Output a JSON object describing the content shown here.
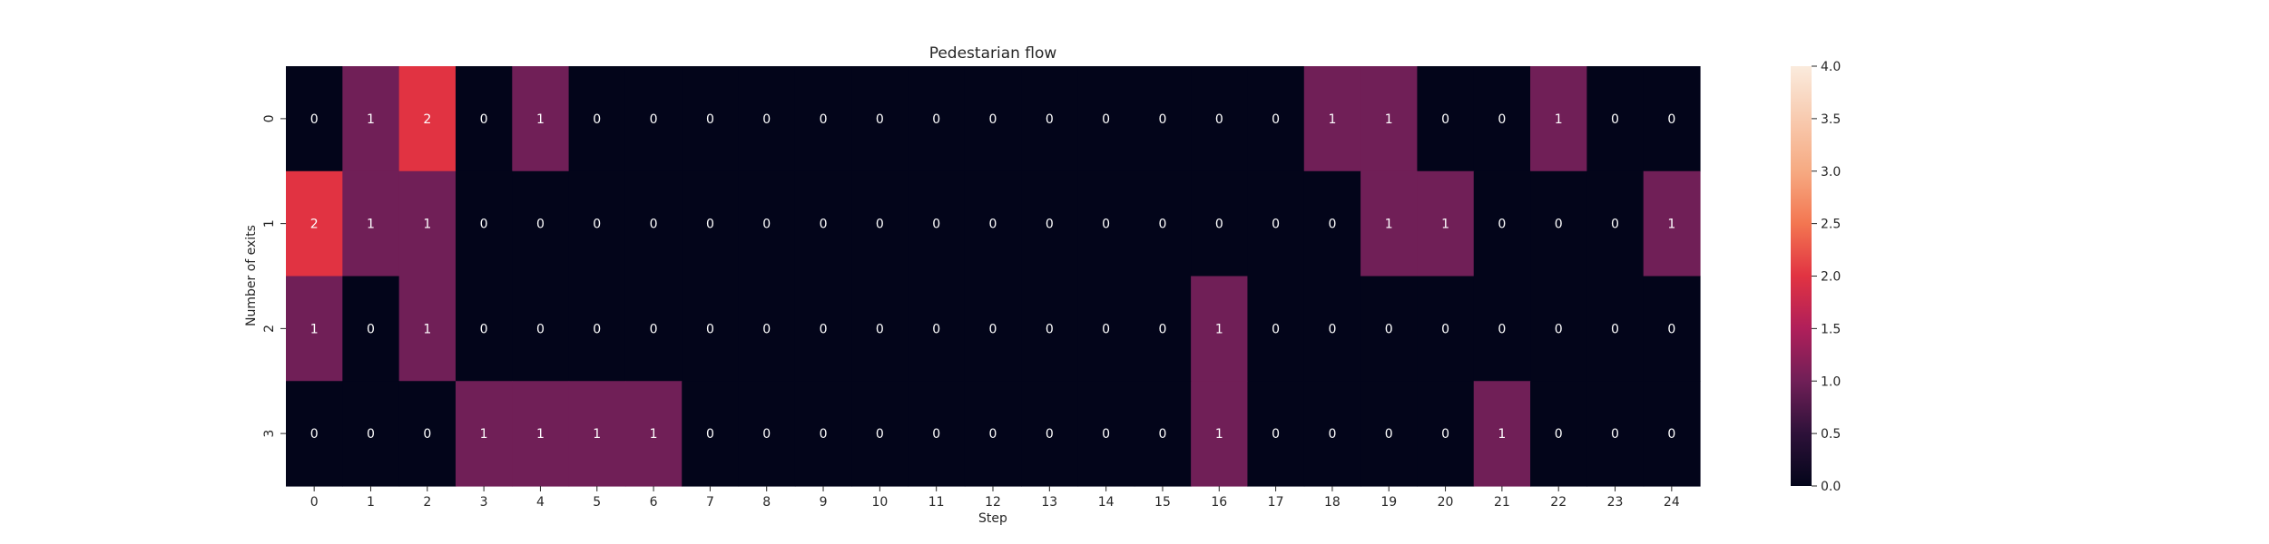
{
  "chart_data": {
    "type": "heatmap",
    "title": "Pedestarian flow",
    "xlabel": "Step",
    "ylabel": "Number of exits",
    "x_categories": [
      "0",
      "1",
      "2",
      "3",
      "4",
      "5",
      "6",
      "7",
      "8",
      "9",
      "10",
      "11",
      "12",
      "13",
      "14",
      "15",
      "16",
      "17",
      "18",
      "19",
      "20",
      "21",
      "22",
      "23",
      "24"
    ],
    "y_categories": [
      "0",
      "1",
      "2",
      "3"
    ],
    "values": [
      [
        0,
        1,
        2,
        0,
        1,
        0,
        0,
        0,
        0,
        0,
        0,
        0,
        0,
        0,
        0,
        0,
        0,
        0,
        1,
        1,
        0,
        0,
        1,
        0,
        0
      ],
      [
        2,
        1,
        1,
        0,
        0,
        0,
        0,
        0,
        0,
        0,
        0,
        0,
        0,
        0,
        0,
        0,
        0,
        0,
        0,
        1,
        1,
        0,
        0,
        0,
        1
      ],
      [
        1,
        0,
        1,
        0,
        0,
        0,
        0,
        0,
        0,
        0,
        0,
        0,
        0,
        0,
        0,
        0,
        1,
        0,
        0,
        0,
        0,
        0,
        0,
        0,
        0
      ],
      [
        0,
        0,
        0,
        1,
        1,
        1,
        1,
        0,
        0,
        0,
        0,
        0,
        0,
        0,
        0,
        0,
        1,
        0,
        0,
        0,
        0,
        1,
        0,
        0,
        0
      ]
    ],
    "annotated": true,
    "colorscale": "rocket",
    "colorbar": {
      "range": [
        0,
        4
      ],
      "ticks": [
        "0.0",
        "0.5",
        "1.0",
        "1.5",
        "2.0",
        "2.5",
        "3.0",
        "3.5",
        "4.0"
      ]
    },
    "color_stops": {
      "0": "#03051a",
      "1": "#701f57",
      "2": "#e13342",
      "4": "#faebdd"
    }
  }
}
